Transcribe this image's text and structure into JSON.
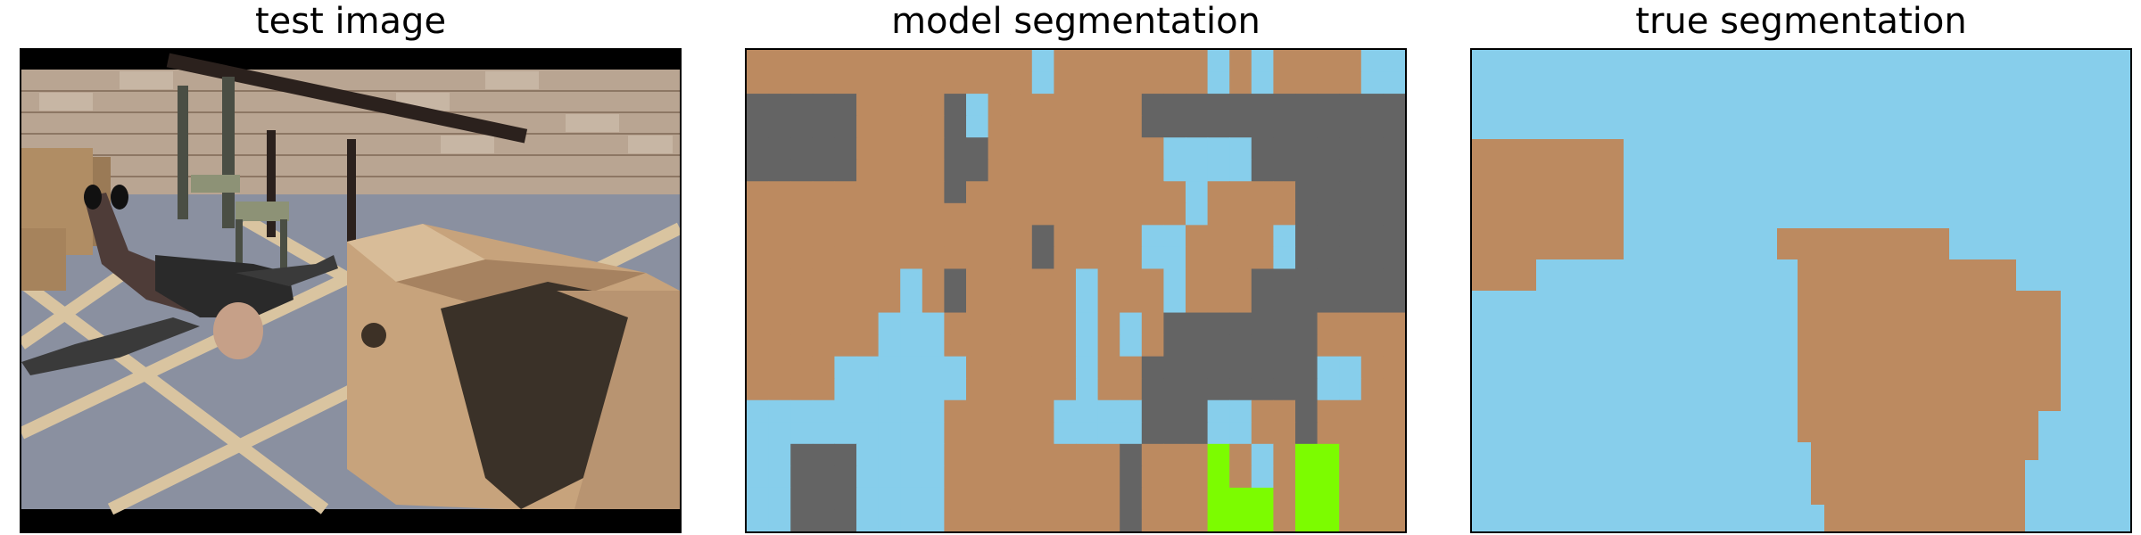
{
  "panels": [
    {
      "title": "test image"
    },
    {
      "title": "model segmentation"
    },
    {
      "title": "true segmentation"
    }
  ],
  "colors": {
    "sky": "#87ceeb",
    "brown": "#bc8a60",
    "gray": "#646464",
    "green": "#7cfc00",
    "border": "#000000"
  },
  "model_segmentation": {
    "rows": 22,
    "cols": 30,
    "legend_codes": {
      "S": "sky",
      "B": "brown",
      "G": "gray",
      "L": "green"
    },
    "grid": [
      "BBBBBBBBBBBBBSBBBBBBBSBSBBBBSS",
      "BBBBBBBBBBBBBSBBBBBBBSBSBBBBSS",
      "GGGGGBBBBGSBBBBBBBGGGGGGGGGGGG",
      "GGGGGBBBBGSBBBBBBBGGGGGGGGGGGG",
      "GGGGGBBBBGGBBBBBBBBSSSSGGGGGGG",
      "GGGGGBBBBGGBBBBBBBBSSSSGGGGGGG",
      "BBBBBBBBBGBBBBBBBBBBSBBBBGGGGG",
      "BBBBBBBBBBBBBBBBBBBBSBBBBGGGGG",
      "BBBBBBBBBBBBBGBBBBSSBBBBSGGGGG",
      "BBBBBBBBBBBBBGBBBBSSBBBBSGGGGG",
      "BBBBBBBSBGBBBBBSBBBSBBBGGGGGGG",
      "BBBBBBBSBGBBBBBSBBBSBBBGGGGGGG",
      "BBBBBBSSSBBBBBBSBSBGGGGGGGBBBB",
      "BBBBBBSSSBBBBBBSBSBGGGGGGGBBBB",
      "BBBBSSSSSSBBBBBSBBGGGGGGGGSSBB",
      "BBBBSSSSSSBBBBBSBBGGGGGGGGSSBB",
      "SSSSSSSSSBBBBBSSSSGGGSSBBGBBBB",
      "SSSSSSSSSBBBBBSSSSGGGSSBBGBBBB",
      "SSGGGSSSSBBBBBBBBGBBBLBSBLLBBB",
      "SSGGGSSSSBBBBBBBBGBBBLBSBLLBBB",
      "SSGGGSSSSBBBBBBBBGBBBLLLBLLBBB",
      "SSGGGSSSSBBBBBBBBGBBBLLLBLLBBB"
    ]
  },
  "true_segmentation": {
    "background": "sky",
    "regions": [
      "brown",
      "brown"
    ]
  }
}
